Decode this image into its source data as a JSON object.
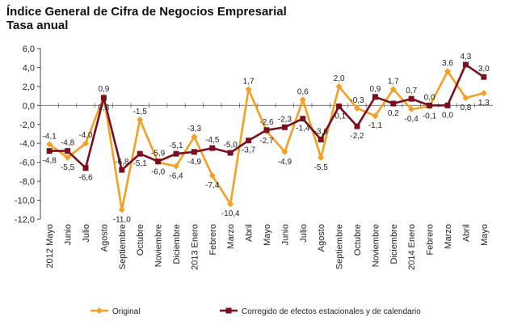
{
  "chart_data": {
    "type": "line",
    "title": "Índice General de Cifra de Negocios Empresarial",
    "subtitle": "Tasa anual",
    "xlabel": "",
    "ylabel": "",
    "ylim": [
      -12,
      6
    ],
    "yticks": [
      "6,0",
      "4,0",
      "2,0",
      "0,0",
      "-2,0",
      "-4,0",
      "-6,0",
      "-8,0",
      "-10,0",
      "-12,0"
    ],
    "ytick_values": [
      6,
      4,
      2,
      0,
      -2,
      -4,
      -6,
      -8,
      -10,
      -12
    ],
    "grid": false,
    "legend_position": "bottom",
    "categories": [
      "2012 Mayo",
      "Junio",
      "Julio",
      "Agosto",
      "Septiembre",
      "Octubre",
      "Noviembre",
      "Diciembre",
      "2013 Enero",
      "Febrero",
      "Marzo",
      "Abril",
      "Mayo",
      "Junio",
      "Julio",
      "Agosto",
      "Septiembre",
      "Octubre",
      "Noviembre",
      "Diciembre",
      "2014 Enero",
      "Febrero",
      "Marzo",
      "Abril",
      "Mayo"
    ],
    "series": [
      {
        "name": "Original",
        "color": "#f5a020",
        "values": [
          -4.1,
          -5.5,
          -4.0,
          0.9,
          -11.0,
          -1.5,
          -6.0,
          -6.4,
          -3.3,
          -7.4,
          -10.4,
          1.7,
          -2.7,
          -4.9,
          0.6,
          -5.5,
          2.0,
          -0.3,
          -1.1,
          1.7,
          -0.4,
          -0.1,
          3.6,
          0.8,
          1.3
        ],
        "labels": [
          "-4,1",
          "-5,5",
          "-4,0",
          "0,9",
          "-11,0",
          "-1,5",
          "-6,0",
          "-6,4",
          "-3,3",
          "-7,4",
          "-10,4",
          "1,7",
          "-2,7",
          "-4,9",
          "0,6",
          "-5,5",
          "2,0",
          "-0,3",
          "-1,1",
          "1,7",
          "-0,4",
          "-0,1",
          "3,6",
          "0,8",
          "1,3"
        ]
      },
      {
        "name": "Corregido de efectos estacionales y de calendario",
        "color": "#7a0f1e",
        "values": [
          -4.8,
          -4.8,
          -6.6,
          0.8,
          -6.8,
          -5.1,
          -5.9,
          -5.1,
          -4.9,
          -4.5,
          -5.0,
          -3.7,
          -2.6,
          -2.3,
          -1.4,
          -3.6,
          -0.1,
          -2.2,
          0.9,
          0.2,
          0.7,
          0.0,
          0.0,
          4.3,
          3.0
        ],
        "labels": [
          "-4,8",
          "-4,8",
          "-6,6",
          "0,8",
          "-6,8",
          "-5,1",
          "-5,9",
          "-5,1",
          "-4,9",
          "-4,5",
          "-5,0",
          "-3,7",
          "-2,6",
          "-2,3",
          "-1,4",
          "-3,6",
          "-0,1",
          "-2,2",
          "0,9",
          "0,2",
          "0,7",
          "0,0",
          "0,0",
          "4,3",
          "3,0"
        ]
      }
    ]
  }
}
